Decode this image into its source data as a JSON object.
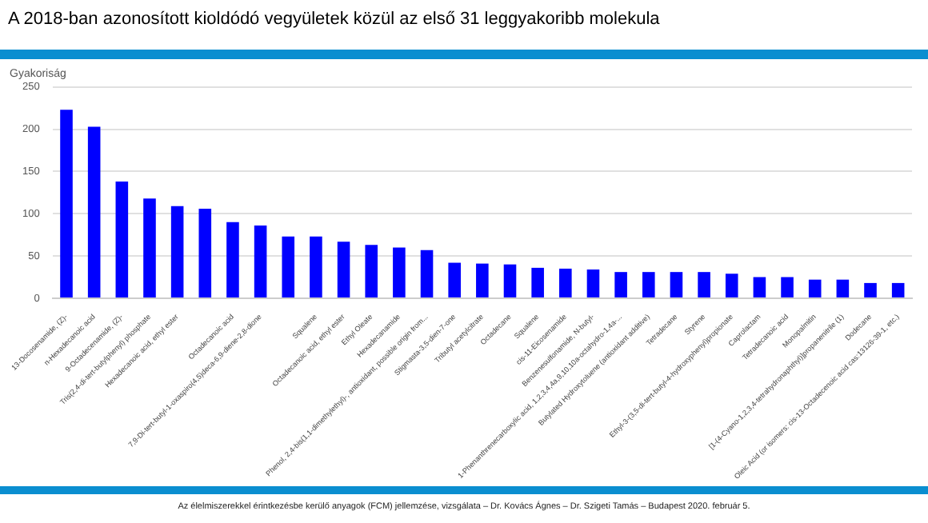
{
  "chart_data": {
    "type": "bar",
    "title": "A 2018-ban azonosított kioldódó vegyületek közül az első 31 leggyakoribb molekula",
    "ylabel": "Gyakoriság",
    "categories": [
      "13-Docosenamide, (Z)-",
      "n-Hexadecanoic acid",
      "9-Octadecenamide, (Z)-",
      "Tris(2,4-di-tert-butylphenyl) phosphate",
      "Hexadecanoic acid, ethyl ester",
      null,
      "Octadecanoic acid",
      "7,9-Di-tert-butyl-1-oxaspiro(4,5)deca-6,9-diene-2,8-dione",
      null,
      "Squalene",
      "Octadecanoic acid, ethyl ester",
      "Ethyl Oleate",
      "Hexadecanamide",
      "Phenol, 2,4-bis(1,1-dimethylethyl)-, antioxidant, possible origin from...",
      "Stigmasta-3,5-dien-7-one",
      "Tributyl acetylcitrate",
      "Octadecane",
      "Squalene",
      "cis-11-Eicosenamide",
      "Benzenesulfonamide, N-butyl-",
      "1-Phenanthrenecarboxylic acid, 1,2,3,4,4a,9,10,10a-octahydro-1,4a-...",
      "Butylated Hydroxytoluene (antioxidant additive)",
      "Tetradecane",
      "Styrene",
      "Ethyl-3-(3,5-di-tert-butyl-4-hydroxyphenyl)propionate",
      "Caprolactam",
      "Tetradecanoic acid",
      "Monopalmitin",
      "[1-(4-Cyano-1,2,3,4-tetrahydronaphthyl)]propanenitrile (1)",
      "Dodecane",
      "Oleic Acid (or isomers: cis-13-Octadecenoic acid cas:13126-39-1, etc.)"
    ],
    "values": [
      223,
      203,
      138,
      118,
      109,
      106,
      90,
      86,
      73,
      73,
      67,
      63,
      60,
      57,
      42,
      41,
      40,
      36,
      35,
      34,
      31,
      31,
      31,
      31,
      29,
      25,
      25,
      22,
      22,
      18,
      18
    ],
    "color": "#0000ff",
    "ylim": [
      0,
      250
    ],
    "yticks": [
      0,
      50,
      100,
      150,
      200,
      250
    ],
    "grid": "y",
    "annotations": [
      "Az élelmiszerekkel érintkezésbe kerülő anyagok (FCM) jellemzése, vizsgálata – Dr. Kovács Ágnes – Dr. Szigeti Tamás – Budapest 2020. február 5."
    ]
  }
}
